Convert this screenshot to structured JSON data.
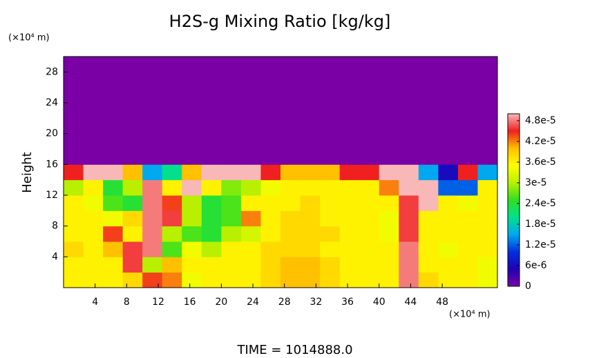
{
  "chart_data": {
    "type": "heatmap",
    "title": "H2S-g Mixing Ratio [kg/kg]",
    "y_unit_label": "(×10⁴ m)",
    "x_unit_label": "(×10⁴ m)",
    "ylabel": "Height",
    "footer": "TIME = 1014888.0",
    "xlim": [
      0,
      55
    ],
    "ylim": [
      0,
      30
    ],
    "xticks": [
      4,
      8,
      12,
      16,
      20,
      24,
      28,
      32,
      36,
      40,
      44,
      48
    ],
    "yticks": [
      4,
      8,
      12,
      16,
      20,
      24,
      28
    ],
    "clim": [
      0,
      5e-05
    ],
    "colors": [
      "#7a00a6",
      "#2000b4",
      "#0030e0",
      "#00a8f0",
      "#00e08c",
      "#30e020",
      "#b8f000",
      "#ffff00",
      "#ffc000",
      "#f02020",
      "#f8b8b8"
    ],
    "cticks": [
      0,
      {
        "value": 6e-06,
        "label": "6e-6"
      },
      {
        "value": 1.2e-05,
        "label": "1.2e-5"
      },
      {
        "value": 1.8e-05,
        "label": "1.8e-5"
      },
      {
        "value": 2.4e-05,
        "label": "2.4e-5"
      },
      {
        "value": 3e-05,
        "label": "3e-5"
      },
      {
        "value": 3.6e-05,
        "label": "3.6e-5"
      },
      {
        "value": 4.2e-05,
        "label": "4.2e-5"
      },
      {
        "value": 4.8e-05,
        "label": "4.8e-5"
      }
    ],
    "z": [
      [
        3.6e-05,
        3.6e-05,
        3.6e-05,
        3.8e-05,
        4.4e-05,
        4.2e-05,
        3.4e-05,
        3.6e-05,
        3.6e-05,
        3.6e-05,
        3.8e-05,
        4e-05,
        4e-05,
        3.8e-05,
        3.6e-05,
        3.6e-05,
        3.6e-05,
        4.8e-05,
        3.8e-05,
        3.6e-05,
        3.6e-05,
        3.4e-05
      ],
      [
        3.6e-05,
        3.6e-05,
        3.6e-05,
        4.6e-05,
        3e-05,
        4e-05,
        3.6e-05,
        3.6e-05,
        3.6e-05,
        3.6e-05,
        3.8e-05,
        4e-05,
        4e-05,
        3.8e-05,
        3.6e-05,
        3.6e-05,
        3.6e-05,
        4.8e-05,
        3.6e-05,
        3.6e-05,
        3.6e-05,
        3.4e-05
      ],
      [
        3.8e-05,
        3.6e-05,
        4e-05,
        4.6e-05,
        4.8e-05,
        2.6e-05,
        3.4e-05,
        3e-05,
        3.6e-05,
        3.6e-05,
        3.8e-05,
        3.8e-05,
        3.8e-05,
        3.6e-05,
        3.6e-05,
        3.6e-05,
        3.6e-05,
        4.8e-05,
        3.6e-05,
        3.4e-05,
        3.6e-05,
        3.6e-05
      ],
      [
        3.6e-05,
        3.6e-05,
        4.4e-05,
        3.6e-05,
        4.8e-05,
        3e-05,
        2.6e-05,
        2.4e-05,
        3e-05,
        3.2e-05,
        3.6e-05,
        3.8e-05,
        3.8e-05,
        3.8e-05,
        3.6e-05,
        3.6e-05,
        3.4e-05,
        4.6e-05,
        3.6e-05,
        3.6e-05,
        3.6e-05,
        3.6e-05
      ],
      [
        3.6e-05,
        3.6e-05,
        3.4e-05,
        3.8e-05,
        4.8e-05,
        4.6e-05,
        3e-05,
        2.4e-05,
        2.6e-05,
        4.2e-05,
        3.6e-05,
        3.8e-05,
        3.8e-05,
        3.6e-05,
        3.6e-05,
        3.6e-05,
        3.4e-05,
        4.6e-05,
        3.6e-05,
        3.6e-05,
        3.6e-05,
        3.6e-05
      ],
      [
        3.6e-05,
        3.4e-05,
        2.6e-05,
        2.4e-05,
        4.8e-05,
        4.4e-05,
        3e-05,
        2.4e-05,
        2.6e-05,
        3.6e-05,
        3.6e-05,
        3.6e-05,
        3.8e-05,
        3.6e-05,
        3.6e-05,
        3.6e-05,
        3.6e-05,
        4.6e-05,
        5e-05,
        3.6e-05,
        3.4e-05,
        3.6e-05
      ],
      [
        3e-05,
        3.6e-05,
        2.4e-05,
        3e-05,
        4.8e-05,
        3.6e-05,
        5e-05,
        3.6e-05,
        2.8e-05,
        3e-05,
        3.4e-05,
        3.6e-05,
        3.6e-05,
        3.6e-05,
        3.6e-05,
        3.6e-05,
        4.2e-05,
        5e-05,
        5e-05,
        1.2e-05,
        1.2e-05,
        3.6e-05
      ],
      [
        4.5e-05,
        5e-05,
        5e-05,
        4e-05,
        1.5e-05,
        2e-05,
        4e-05,
        5e-05,
        5e-05,
        5e-05,
        4.5e-05,
        4e-05,
        4e-05,
        4e-05,
        4.5e-05,
        4.5e-05,
        5e-05,
        5e-05,
        1.5e-05,
        6e-06,
        4.5e-05,
        1.5e-05
      ],
      [
        0,
        0,
        0,
        0,
        0,
        0,
        0,
        0,
        0,
        0,
        0,
        0,
        0,
        0,
        0,
        0,
        0,
        0,
        0,
        0,
        0,
        0
      ],
      [
        0,
        0,
        0,
        0,
        0,
        0,
        0,
        0,
        0,
        0,
        0,
        0,
        0,
        0,
        0,
        0,
        0,
        0,
        0,
        0,
        0,
        0
      ],
      [
        0,
        0,
        0,
        0,
        0,
        0,
        0,
        0,
        0,
        0,
        0,
        0,
        0,
        0,
        0,
        0,
        0,
        0,
        0,
        0,
        0,
        0
      ],
      [
        0,
        0,
        0,
        0,
        0,
        0,
        0,
        0,
        0,
        0,
        0,
        0,
        0,
        0,
        0,
        0,
        0,
        0,
        0,
        0,
        0,
        0
      ],
      [
        0,
        0,
        0,
        0,
        0,
        0,
        0,
        0,
        0,
        0,
        0,
        0,
        0,
        0,
        0,
        0,
        0,
        0,
        0,
        0,
        0,
        0
      ],
      [
        0,
        0,
        0,
        0,
        0,
        0,
        0,
        0,
        0,
        0,
        0,
        0,
        0,
        0,
        0,
        0,
        0,
        0,
        0,
        0,
        0,
        0
      ],
      [
        0,
        0,
        0,
        0,
        0,
        0,
        0,
        0,
        0,
        0,
        0,
        0,
        0,
        0,
        0,
        0,
        0,
        0,
        0,
        0,
        0,
        0
      ]
    ]
  }
}
